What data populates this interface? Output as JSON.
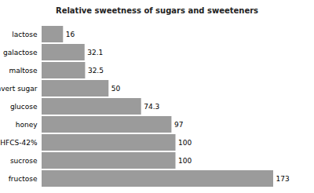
{
  "chart_data": {
    "type": "bar",
    "title": "Relative sweetness of sugars and sweeteners",
    "orientation": "horizontal",
    "categories": [
      "lactose",
      "galactose",
      "maltose",
      "invert sugar",
      "glucose",
      "honey",
      "HFCS-42%",
      "sucrose",
      "fructose"
    ],
    "values": [
      16,
      32.1,
      32.5,
      50,
      74.3,
      97,
      100,
      100,
      173
    ],
    "color": "#9b9b9b",
    "xlim": [
      0,
      173
    ],
    "grid": false,
    "data_labels": true,
    "tick_labels": "y"
  }
}
